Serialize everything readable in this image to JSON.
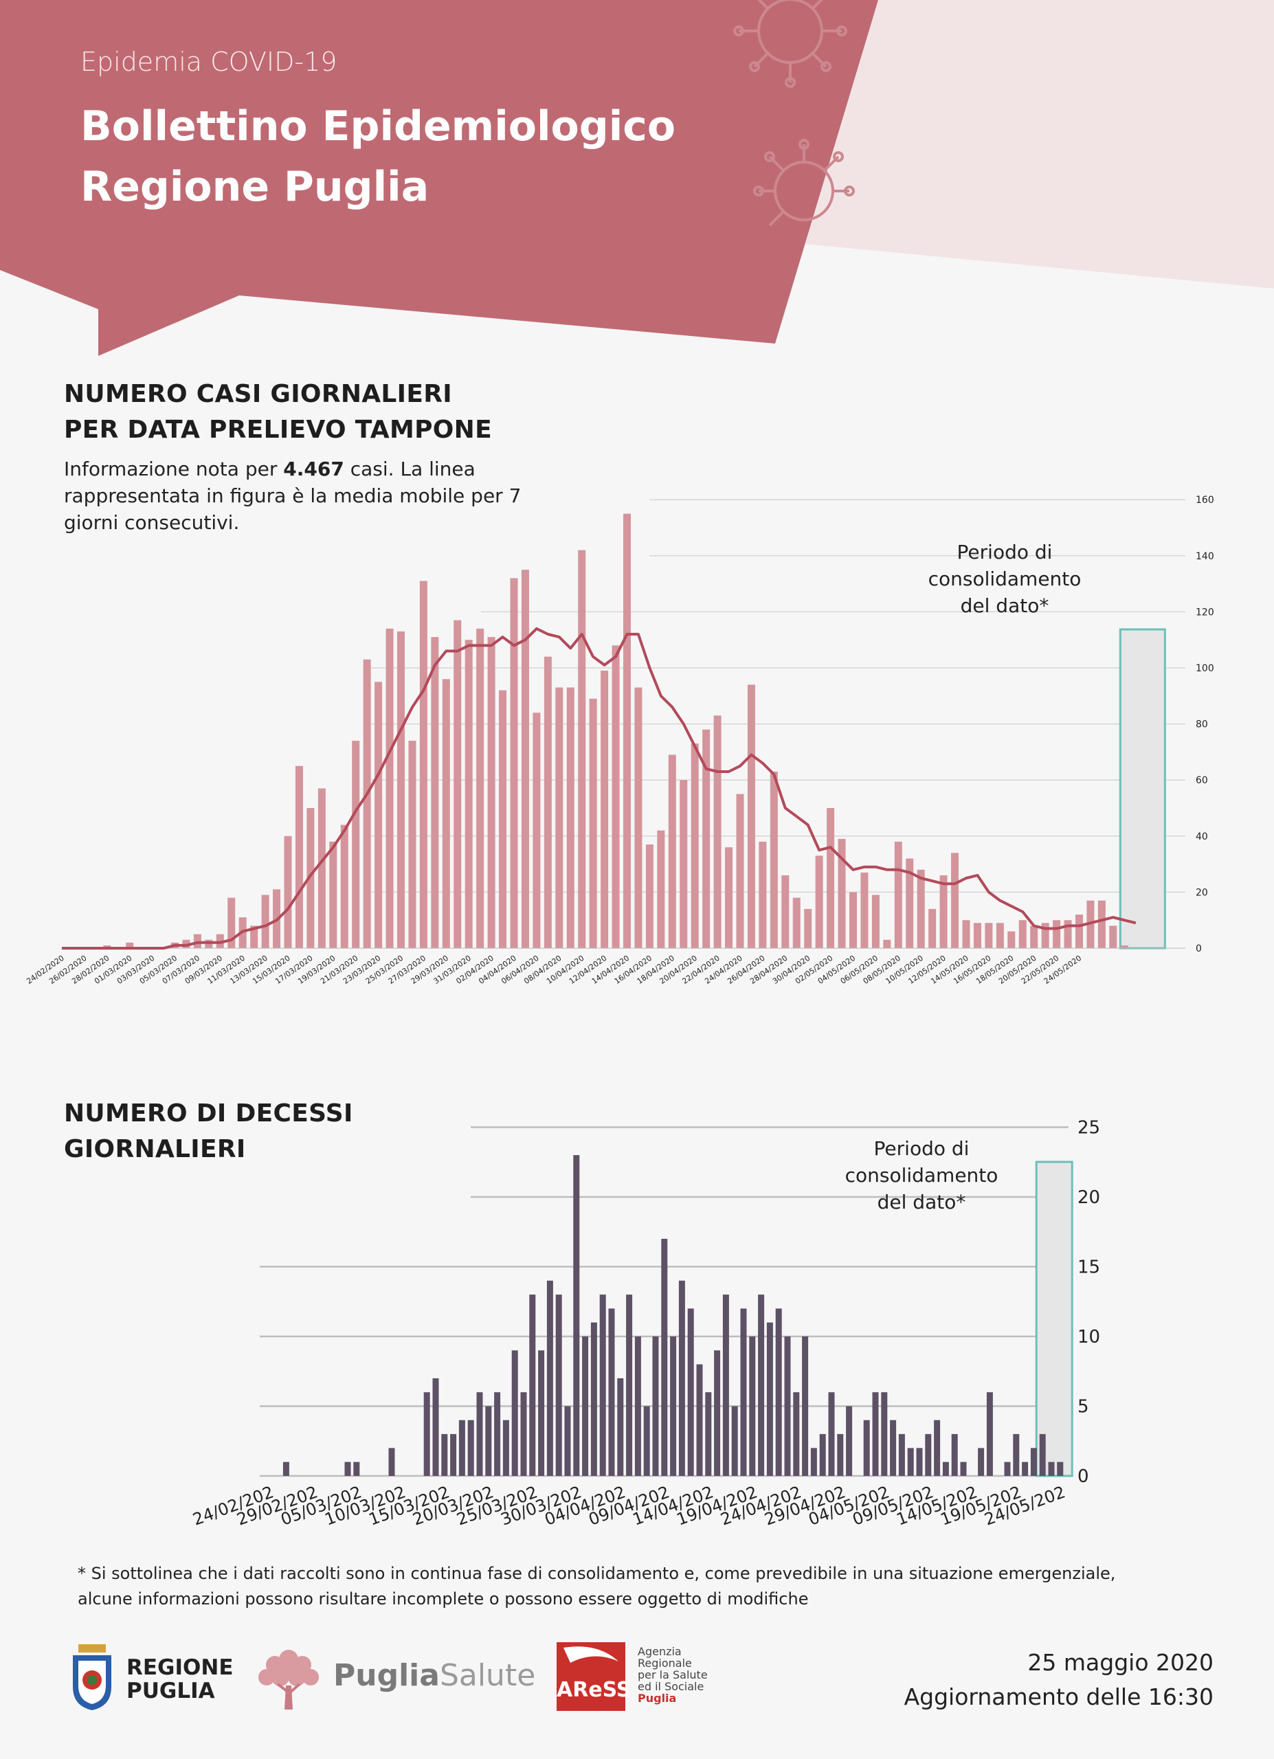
{
  "header": {
    "subtitle": "Epidemia COVID-19",
    "title_line1": "Bollettino Epidemiologico",
    "title_line2": "Regione Puglia"
  },
  "cases_section": {
    "title_line1": "NUMERO CASI GIORNALIERI",
    "title_line2": "PER DATA PRELIEVO TAMPONE",
    "desc_before": "Informazione nota per",
    "desc_bold": "4.467",
    "desc_after": " casi. La linea rappresentata in figura è la media mobile per 7 giorni consecutivi.",
    "consolidation_line1": "Periodo di",
    "consolidation_line2": "consolidamento",
    "consolidation_line3": "del dato*"
  },
  "deaths_section": {
    "title_line1": "NUMERO DI DECESSI",
    "title_line2": "GIORNALIERI",
    "consolidation_line1": "Periodo di",
    "consolidation_line2": "consolidamento",
    "consolidation_line3": "del dato*"
  },
  "footnote": {
    "line1": "* Si sottolinea che i dati raccolti sono in continua fase di consolidamento e, come prevedibile in una situazione emergenziale,",
    "line2": "alcune informazioni possono risultare incomplete o possono essere oggetto di modifiche"
  },
  "footer": {
    "logo_regione_line1": "REGIONE",
    "logo_regione_line2": "PUGLIA",
    "logo_puglia": "Puglia",
    "logo_salute": "Salute",
    "logo_aress": "AReSS",
    "aress_line1": "Agenzia",
    "aress_line2": "Regionale",
    "aress_line3": "per la Salute",
    "aress_line4": "ed il Sociale",
    "aress_line5": "Puglia",
    "date": "25 maggio 2020",
    "update": "Aggiornamento delle 16:30"
  },
  "colors": {
    "header_band": "#bf6a73",
    "bars_cases": "#d4949b",
    "moving_average": "#b34a5a",
    "bars_deaths": "#5d5166",
    "consolidation_box": "#6cbfb8"
  },
  "chart_data": [
    {
      "type": "bar",
      "ylim": [
        0,
        160
      ],
      "y_ticks": [
        "0",
        "20",
        "40",
        "60",
        "80",
        "100",
        "120",
        "140",
        "160"
      ],
      "x_tick_labels": [
        "24/02/2020",
        "26/02/2020",
        "28/02/2020",
        "01/03/2020",
        "03/03/2020",
        "05/03/2020",
        "07/03/2020",
        "09/03/2020",
        "11/03/2020",
        "13/03/2020",
        "15/03/2020",
        "17/03/2020",
        "19/03/2020",
        "21/03/2020",
        "23/03/2020",
        "25/03/2020",
        "27/03/2020",
        "29/03/2020",
        "31/03/2020",
        "02/04/2020",
        "04/04/2020",
        "06/04/2020",
        "08/04/2020",
        "10/04/2020",
        "12/04/2020",
        "14/04/2020",
        "16/04/2020",
        "18/04/2020",
        "20/04/2020",
        "22/04/2020",
        "24/04/2020",
        "26/04/2020",
        "28/04/2020",
        "30/04/2020",
        "02/05/2020",
        "04/05/2020",
        "06/05/2020",
        "08/05/2020",
        "10/05/2020",
        "12/05/2020",
        "14/05/2020",
        "16/05/2020",
        "18/05/2020",
        "20/05/2020",
        "22/05/2020",
        "24/05/2020"
      ],
      "series": [
        {
          "type": "bar",
          "values": [
            0,
            0,
            0,
            0,
            1,
            0,
            2,
            0,
            0,
            0,
            2,
            3,
            5,
            3,
            5,
            18,
            11,
            8,
            19,
            21,
            40,
            65,
            50,
            57,
            38,
            44,
            74,
            103,
            95,
            114,
            113,
            74,
            131,
            111,
            96,
            117,
            110,
            114,
            111,
            92,
            132,
            135,
            84,
            104,
            93,
            93,
            142,
            89,
            99,
            108,
            155,
            93,
            37,
            42,
            69,
            60,
            73,
            78,
            83,
            36,
            55,
            94,
            38,
            63,
            26,
            18,
            14,
            33,
            50,
            39,
            20,
            27,
            19,
            3,
            38,
            32,
            28,
            14,
            26,
            34,
            10,
            9,
            9,
            9,
            6,
            10,
            8,
            9,
            10,
            10,
            12,
            17,
            17,
            8,
            1,
            0
          ]
        },
        {
          "type": "line",
          "values": [
            0,
            0,
            0,
            0,
            0,
            0,
            0,
            0,
            0,
            0,
            1,
            1,
            2,
            2,
            2,
            3,
            6,
            7,
            8,
            10,
            14,
            20,
            26,
            31,
            36,
            42,
            49,
            55,
            62,
            70,
            78,
            86,
            92,
            101,
            106,
            106,
            108,
            108,
            108,
            111,
            108,
            110,
            114,
            112,
            111,
            107,
            112,
            104,
            101,
            104,
            112,
            112,
            100,
            90,
            86,
            80,
            72,
            64,
            63,
            63,
            65,
            69,
            66,
            62,
            50,
            47,
            44,
            35,
            36,
            32,
            28,
            29,
            29,
            28,
            28,
            27,
            25,
            24,
            23,
            23,
            25,
            26,
            20,
            17,
            15,
            13,
            8,
            7,
            7,
            8,
            8,
            9,
            10,
            11,
            10,
            9
          ]
        }
      ]
    },
    {
      "type": "bar",
      "ylim": [
        0,
        25
      ],
      "y_ticks": [
        "0",
        "5",
        "10",
        "15",
        "20",
        "25"
      ],
      "x_tick_labels": [
        "24/02/202",
        "29/02/202",
        "05/03/202",
        "10/03/202",
        "15/03/202",
        "20/03/202",
        "25/03/202",
        "30/03/202",
        "04/04/202",
        "09/04/202",
        "14/04/202",
        "19/04/202",
        "24/04/202",
        "29/04/202",
        "04/05/202",
        "09/05/202",
        "14/05/202",
        "19/05/202",
        "24/05/202"
      ],
      "series": [
        {
          "type": "bar",
          "values": [
            0,
            0,
            0,
            1,
            0,
            0,
            0,
            0,
            0,
            0,
            1,
            1,
            0,
            0,
            0,
            2,
            0,
            0,
            0,
            6,
            7,
            3,
            3,
            4,
            4,
            6,
            5,
            6,
            4,
            9,
            6,
            13,
            9,
            14,
            13,
            5,
            23,
            10,
            11,
            13,
            12,
            7,
            13,
            10,
            5,
            10,
            17,
            10,
            14,
            12,
            8,
            6,
            9,
            13,
            5,
            12,
            10,
            13,
            11,
            12,
            10,
            6,
            10,
            2,
            3,
            6,
            3,
            5,
            0,
            4,
            6,
            6,
            4,
            3,
            2,
            2,
            3,
            4,
            1,
            3,
            1,
            0,
            2,
            6,
            0,
            1,
            3,
            1,
            2,
            3,
            1,
            1
          ]
        }
      ]
    }
  ]
}
